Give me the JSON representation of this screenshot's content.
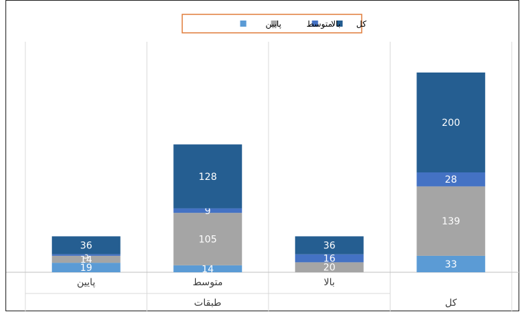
{
  "chart_data": {
    "type": "bar",
    "stacked": true,
    "categories": [
      "پایین",
      "متوسط",
      "بالا",
      ""
    ],
    "group_labels": [
      {
        "label": "طبقات",
        "span": [
          0,
          2
        ]
      },
      {
        "label": "کل",
        "span": [
          3,
          3
        ]
      }
    ],
    "series": [
      {
        "name": "پایین",
        "color": "#5b9bd5",
        "values": [
          19,
          14,
          0,
          33
        ],
        "labels": [
          "19",
          "14",
          "",
          "33"
        ]
      },
      {
        "name": "متوسط",
        "color": "#a5a5a5",
        "values": [
          14,
          105,
          20,
          139
        ],
        "labels": [
          "14",
          "105",
          "20",
          "139"
        ]
      },
      {
        "name": "بالا",
        "color": "#4472c4",
        "values": [
          3,
          9,
          16,
          28
        ],
        "labels": [
          "3",
          "9",
          "16",
          "28"
        ]
      },
      {
        "name": "کل",
        "color": "#255e91",
        "values": [
          36,
          128,
          36,
          200
        ],
        "labels": [
          "36",
          "128",
          "36",
          "200"
        ]
      }
    ],
    "legend_order": [
      "کل",
      "بالا",
      "متوسط",
      "پایین"
    ],
    "legend_position": "top",
    "ylim": [
      0,
      400
    ],
    "grid": "vertical-category-separators"
  }
}
